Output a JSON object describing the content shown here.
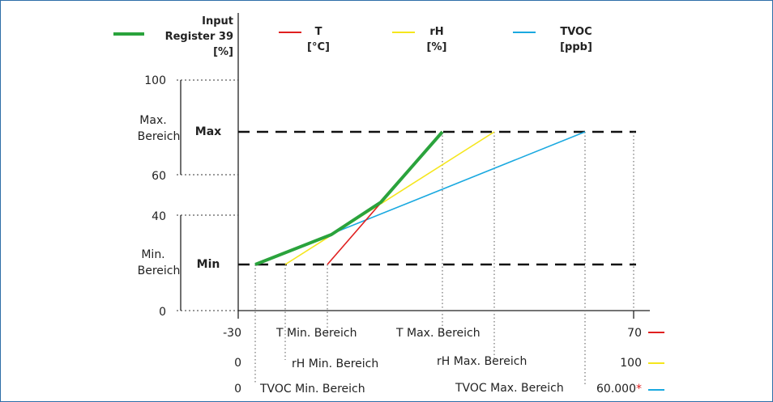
{
  "legend": [
    {
      "line1": "Input",
      "line2": "Register 39",
      "line3": "[%]",
      "color": "#2aa33c"
    },
    {
      "line1": "T",
      "line2": "[°C]",
      "color": "#e02020"
    },
    {
      "line1": "rH",
      "line2": "[%]",
      "color": "#f5e61c"
    },
    {
      "line1": "TVOC",
      "line2": "[ppb]",
      "color": "#1aa9e0"
    }
  ],
  "y_axis": {
    "tick_100": "100",
    "tick_60": "60",
    "tick_40": "40",
    "tick_0": "0",
    "max_range_line1": "Max.",
    "max_range_line2": "Bereich",
    "min_range_line1": "Min.",
    "min_range_line2": "Bereich",
    "max_label": "Max",
    "min_label": "Min"
  },
  "x_rows": [
    {
      "start": "-30",
      "min_label": "T Min. Bereich",
      "max_label": "T Max. Bereich",
      "end": "70",
      "end_suffix": "",
      "color": "#e02020"
    },
    {
      "start": "0",
      "min_label": "rH Min. Bereich",
      "max_label": "rH Max. Bereich",
      "end": "100",
      "end_suffix": "",
      "color": "#f5e61c"
    },
    {
      "start": "0",
      "min_label": "TVOC Min. Bereich",
      "max_label": "TVOC Max. Bereich",
      "end": "60.000",
      "end_suffix": "*",
      "color": "#1aa9e0"
    }
  ]
}
